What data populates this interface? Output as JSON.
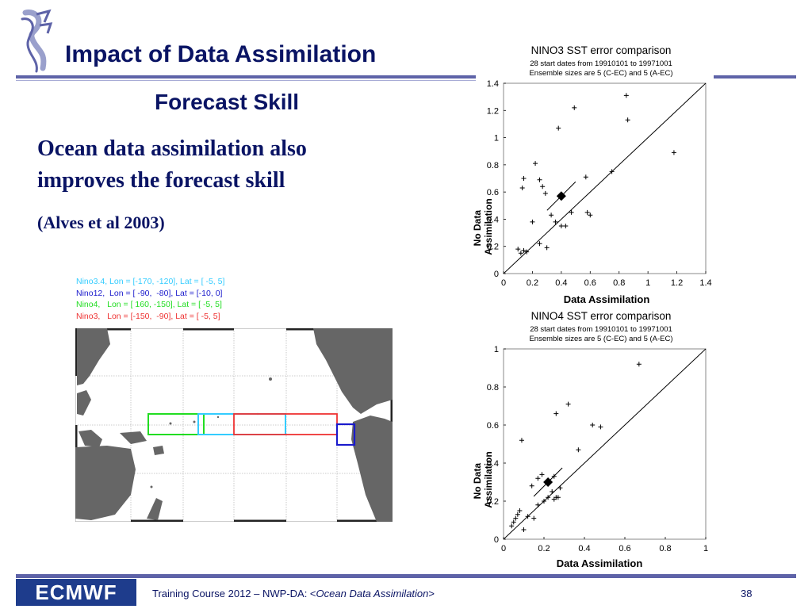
{
  "slide": {
    "title": "Impact of Data Assimilation",
    "subtitle": "Forecast Skill",
    "body_lines": [
      "Ocean data assimilation also",
      "improves the forecast skill"
    ],
    "citation": "(Alves et al 2003)"
  },
  "map_legend": [
    {
      "text": "Nino3.4, Lon = [-170, -120], Lat = [ -5, 5]",
      "color": "#33ccff"
    },
    {
      "text": "Nino12,  Lon = [ -90,  -80], Lat = [-10, 0]",
      "color": "#1a1acc"
    },
    {
      "text": "Nino4,   Lon = [ 160, -150], Lat = [ -5, 5]",
      "color": "#22dd22"
    },
    {
      "text": "Nino3,   Lon = [-150,  -90], Lat = [ -5, 5]",
      "color": "#ee3333"
    }
  ],
  "chart_data": [
    {
      "type": "scatter",
      "title": "NINO3 SST error comparison",
      "subtitle": [
        "28 start dates from 19910101 to 19971001",
        "Ensemble sizes are  5 (C-EC)  and  5 (A-EC)"
      ],
      "xlabel": "Data Assimilation",
      "ylabel": "No Data Assimilation",
      "xlim": [
        0,
        1.4
      ],
      "ylim": [
        0,
        1.4
      ],
      "ticks": [
        0,
        0.2,
        0.4,
        0.6,
        0.8,
        1,
        1.2,
        1.4
      ],
      "tick_labels": [
        "0",
        "0.2",
        "0.4",
        "0.6",
        "0.8",
        "1",
        "1.2",
        "1.4"
      ],
      "grid": false,
      "diagonal": true,
      "points": [
        [
          0.1,
          0.18
        ],
        [
          0.12,
          0.15
        ],
        [
          0.14,
          0.17
        ],
        [
          0.16,
          0.16
        ],
        [
          0.13,
          0.63
        ],
        [
          0.14,
          0.7
        ],
        [
          0.2,
          0.38
        ],
        [
          0.22,
          0.81
        ],
        [
          0.25,
          0.69
        ],
        [
          0.27,
          0.64
        ],
        [
          0.29,
          0.59
        ],
        [
          0.25,
          0.22
        ],
        [
          0.3,
          0.19
        ],
        [
          0.33,
          0.43
        ],
        [
          0.36,
          0.38
        ],
        [
          0.38,
          1.07
        ],
        [
          0.4,
          0.35
        ],
        [
          0.43,
          0.35
        ],
        [
          0.47,
          0.45
        ],
        [
          0.49,
          1.22
        ],
        [
          0.57,
          0.71
        ],
        [
          0.58,
          0.45
        ],
        [
          0.6,
          0.43
        ],
        [
          0.75,
          0.75
        ],
        [
          0.85,
          1.31
        ],
        [
          0.86,
          1.13
        ],
        [
          1.18,
          0.89
        ]
      ],
      "mean": [
        0.4,
        0.57
      ]
    },
    {
      "type": "scatter",
      "title": "NINO4 SST error comparison",
      "subtitle": [
        "28 start dates from 19910101 to 19971001",
        "Ensemble sizes are  5 (C-EC)  and  5 (A-EC)"
      ],
      "xlabel": "Data Assimilation",
      "ylabel": "No Data Assimilation",
      "xlim": [
        0,
        1
      ],
      "ylim": [
        0,
        1
      ],
      "ticks": [
        0,
        0.2,
        0.4,
        0.6,
        0.8,
        1
      ],
      "tick_labels": [
        "0",
        "0.2",
        "0.4",
        "0.6",
        "0.8",
        "1"
      ],
      "grid": false,
      "diagonal": true,
      "points": [
        [
          0.04,
          0.07
        ],
        [
          0.05,
          0.09
        ],
        [
          0.06,
          0.11
        ],
        [
          0.07,
          0.13
        ],
        [
          0.08,
          0.15
        ],
        [
          0.1,
          0.05
        ],
        [
          0.12,
          0.12
        ],
        [
          0.15,
          0.11
        ],
        [
          0.17,
          0.18
        ],
        [
          0.17,
          0.32
        ],
        [
          0.19,
          0.34
        ],
        [
          0.2,
          0.2
        ],
        [
          0.22,
          0.22
        ],
        [
          0.24,
          0.25
        ],
        [
          0.25,
          0.21
        ],
        [
          0.26,
          0.22
        ],
        [
          0.27,
          0.22
        ],
        [
          0.25,
          0.33
        ],
        [
          0.28,
          0.27
        ],
        [
          0.26,
          0.66
        ],
        [
          0.32,
          0.71
        ],
        [
          0.37,
          0.47
        ],
        [
          0.44,
          0.6
        ],
        [
          0.48,
          0.59
        ],
        [
          0.67,
          0.92
        ],
        [
          0.09,
          0.52
        ],
        [
          0.14,
          0.28
        ]
      ],
      "mean": [
        0.22,
        0.3
      ]
    }
  ],
  "footer": {
    "logo_text": "ECMWF",
    "text_prefix": "Training Course 2012 – NWP-DA: <",
    "text_italic": "Ocean Data Assimilation",
    "text_suffix": ">",
    "page_number": "38"
  },
  "colors": {
    "title": "#0a1464",
    "rule": "#5e63a8",
    "land": "#666666"
  }
}
